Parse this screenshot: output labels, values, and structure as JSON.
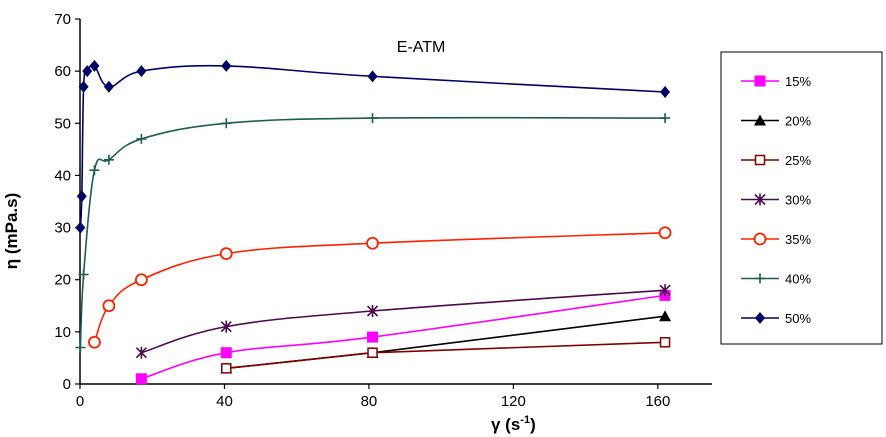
{
  "chart_data": {
    "type": "line",
    "title": "E-ATM",
    "xlabel": "γ (s",
    "xlabel_sup": "-1",
    "xlabel_close": ")",
    "ylabel": "η (mPa.s)",
    "xlim": [
      0,
      175
    ],
    "ylim": [
      0,
      70
    ],
    "xticks": [
      0,
      40,
      80,
      120,
      160
    ],
    "yticks": [
      0,
      10,
      20,
      30,
      40,
      50,
      60,
      70
    ],
    "grid": false,
    "legend_position": "right",
    "series": [
      {
        "name": "15%",
        "color": "#ff00ff",
        "marker": "square-filled",
        "points": [
          [
            17,
            1
          ],
          [
            40.5,
            6
          ],
          [
            81,
            9
          ],
          [
            162,
            17
          ]
        ]
      },
      {
        "name": "20%",
        "color": "#000000",
        "marker": "triangle-filled",
        "points": [
          [
            40.5,
            3
          ],
          [
            81,
            6
          ],
          [
            162,
            13
          ]
        ]
      },
      {
        "name": "25%",
        "color": "#800000",
        "marker": "square-open",
        "points": [
          [
            40.5,
            3
          ],
          [
            81,
            6
          ],
          [
            162,
            8
          ]
        ]
      },
      {
        "name": "30%",
        "color": "#4b0a4b",
        "marker": "star",
        "points": [
          [
            17,
            6
          ],
          [
            40.5,
            11
          ],
          [
            81,
            14
          ],
          [
            162,
            18
          ]
        ]
      },
      {
        "name": "35%",
        "color": "#ff2200",
        "marker": "circle-open",
        "points": [
          [
            4,
            8
          ],
          [
            8,
            15
          ],
          [
            17,
            20
          ],
          [
            40.5,
            25
          ],
          [
            81,
            27
          ],
          [
            162,
            29
          ]
        ]
      },
      {
        "name": "40%",
        "color": "#1f5c4f",
        "marker": "plus",
        "points": [
          [
            0.1,
            7
          ],
          [
            1,
            21
          ],
          [
            4,
            41
          ],
          [
            8,
            43
          ],
          [
            17,
            47
          ],
          [
            40.5,
            50
          ],
          [
            81,
            51
          ],
          [
            162,
            51
          ]
        ]
      },
      {
        "name": "50%",
        "color": "#000066",
        "marker": "diamond-filled",
        "points": [
          [
            0.1,
            30
          ],
          [
            0.5,
            36
          ],
          [
            1,
            57
          ],
          [
            2,
            60
          ],
          [
            4,
            61
          ],
          [
            8,
            57
          ],
          [
            17,
            60
          ],
          [
            40.5,
            61
          ],
          [
            81,
            59
          ],
          [
            162,
            56
          ]
        ]
      }
    ]
  }
}
